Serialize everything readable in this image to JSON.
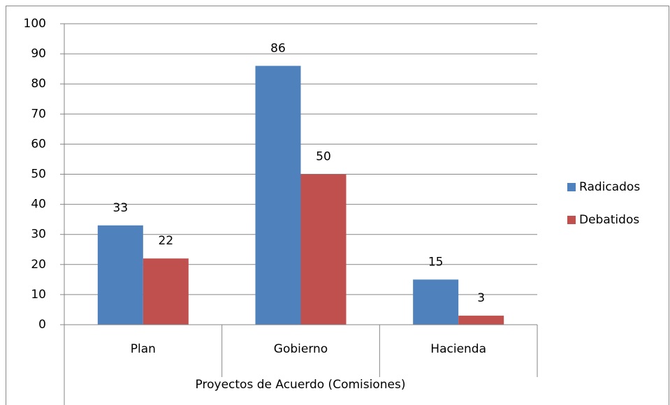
{
  "chart_data": {
    "type": "bar",
    "categories": [
      "Plan",
      "Gobierno",
      "Hacienda"
    ],
    "series": [
      {
        "name": "Radicados",
        "color": "#4f81bd",
        "values": [
          33,
          86,
          15
        ]
      },
      {
        "name": "Debatidos",
        "color": "#c0504d",
        "values": [
          22,
          50,
          3
        ]
      }
    ],
    "x_label": "Proyectos de Acuerdo (Comisiones)",
    "ylim": [
      0,
      100
    ],
    "yticks": [
      0,
      10,
      20,
      30,
      40,
      50,
      60,
      70,
      80,
      90,
      100
    ],
    "grid": true,
    "legend": "right",
    "data_labels": true
  }
}
